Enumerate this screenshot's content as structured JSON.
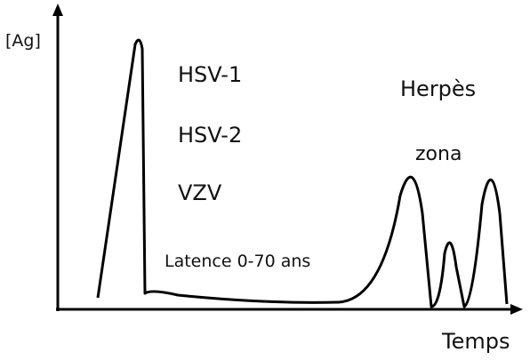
{
  "axes": {
    "y_label": "[Ag]",
    "x_label": "Temps"
  },
  "labels": {
    "hsv1": "HSV-1",
    "hsv2": "HSV-2",
    "vzv": "VZV",
    "latency": "Latence 0-70 ans",
    "herpes": "Herpès",
    "zona": "zona"
  }
}
